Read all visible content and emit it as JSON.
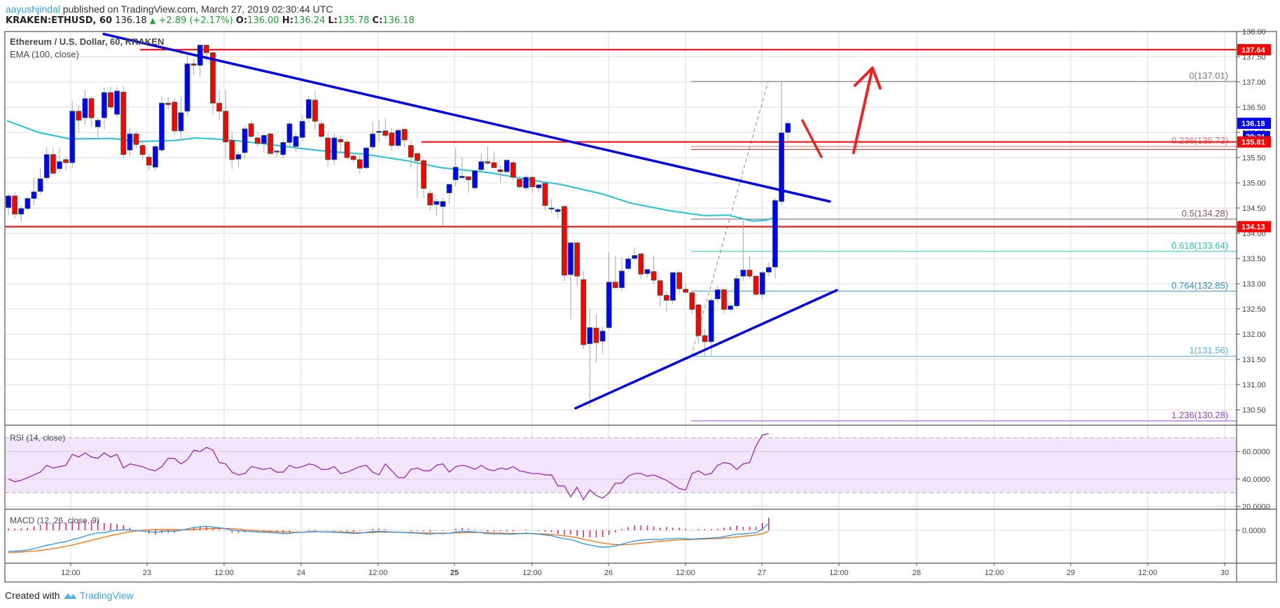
{
  "header": {
    "author": "aayushjindal",
    "published_text": "published on TradingView.com, March 27, 2019 02:30:44 UTC",
    "symbol": "KRAKEN:ETHUSD, 60",
    "last": "136.18",
    "change": "+2.89 (+2.17%)",
    "o_label": "O:",
    "o": "136.00",
    "h_label": "H:",
    "h": "136.24",
    "l_label": "L:",
    "l": "135.78",
    "c_label": "C:",
    "c": "136.18"
  },
  "legend": {
    "title": "Ethereum / U.S. Dollar, 60, KRAKEN",
    "ema": "EMA (100, close)",
    "rsi": "RSI (14, close)",
    "macd": "MACD (12, 26, close, 9)"
  },
  "footer": {
    "created_with": "Created with",
    "brand": "TradingView"
  },
  "colors": {
    "up": "#0000ff",
    "down": "#ff0000",
    "ema": "#21c3d6",
    "trendline": "#0000e6",
    "hline": "#ff0000",
    "rsi_line": "#9c27b0",
    "rsi_band": "#f3e5fc",
    "macd_line": "#2196f3",
    "signal_line": "#ff6d00",
    "histogram": "#e91e63"
  },
  "chart_data": {
    "type": "candlestick",
    "title": "Ethereum / U.S. Dollar, 60, KRAKEN",
    "interval": "60 min",
    "price_axis": {
      "min": 130.28,
      "max": 138.0,
      "ticks": [
        "138.00",
        "137.50",
        "137.00",
        "136.50",
        "136.00",
        "135.50",
        "135.00",
        "134.50",
        "134.00",
        "133.50",
        "133.00",
        "132.50",
        "132.00",
        "131.50",
        "131.00",
        "130.50"
      ]
    },
    "time_axis": {
      "ticks": [
        "12:00",
        "23",
        "12:00",
        "24",
        "12:00",
        "25",
        "12:00",
        "26",
        "12:00",
        "27",
        "12:00",
        "28",
        "12:00",
        "29",
        "12:00",
        "30"
      ]
    },
    "price_labels": [
      {
        "value": "137.64",
        "color": "#ff0000"
      },
      {
        "value": "136.18",
        "color": "#0000ff"
      },
      {
        "value": "29:21",
        "color": "#0000ff"
      },
      {
        "value": "135.81",
        "color": "#ff0000"
      },
      {
        "value": "134.13",
        "color": "#ff0000"
      }
    ],
    "horizontal_lines": [
      137.64,
      135.81,
      134.13
    ],
    "fibonacci": [
      {
        "level": "0",
        "price": 137.01,
        "label": "0(137.01)",
        "color": "#787878"
      },
      {
        "level": "0.236",
        "price": 135.72,
        "label": "0.236(135.72)",
        "color": "#e57373"
      },
      {
        "level": "0.5",
        "price": 134.28,
        "label": "0.5(134.28)",
        "color": "#7d5a6e"
      },
      {
        "level": "0.618",
        "price": 133.64,
        "label": "0.618(133.64)",
        "color": "#26c6a0"
      },
      {
        "level": "0.764",
        "price": 132.85,
        "label": "0.764(132.85)",
        "color": "#2f8fc8"
      },
      {
        "level": "1",
        "price": 131.56,
        "label": "1(131.56)",
        "color": "#5aaee0"
      },
      {
        "level": "1.236",
        "price": 130.28,
        "label": "1.236(130.28)",
        "color": "#a040c8"
      }
    ],
    "trendlines": [
      {
        "name": "bearish-trendline",
        "from": [
          148,
          137.95
        ],
        "to": [
          1185,
          134.63
        ]
      },
      {
        "name": "bullish-trendline",
        "from": [
          822,
          130.53
        ],
        "to": [
          1195,
          132.87
        ]
      }
    ],
    "candles_ohlc": [
      [
        134.51,
        134.8,
        134.35,
        134.74
      ],
      [
        134.74,
        134.82,
        134.3,
        134.38
      ],
      [
        134.38,
        134.55,
        134.22,
        134.49
      ],
      [
        134.49,
        134.72,
        134.45,
        134.69
      ],
      [
        134.69,
        135.1,
        134.55,
        134.82
      ],
      [
        134.83,
        135.3,
        134.78,
        135.08
      ],
      [
        135.1,
        135.7,
        135.05,
        135.56
      ],
      [
        135.56,
        135.7,
        135.15,
        135.19
      ],
      [
        135.28,
        135.7,
        135.2,
        135.42
      ],
      [
        135.46,
        135.52,
        135.25,
        135.4
      ],
      [
        135.4,
        136.62,
        135.3,
        136.42
      ],
      [
        136.42,
        136.55,
        136.0,
        136.24
      ],
      [
        136.29,
        136.85,
        136.15,
        136.67
      ],
      [
        136.67,
        136.72,
        136.1,
        136.29
      ],
      [
        136.11,
        136.3,
        135.85,
        136.24
      ],
      [
        136.29,
        136.88,
        136.05,
        136.79
      ],
      [
        136.79,
        136.9,
        136.45,
        136.5
      ],
      [
        136.36,
        136.9,
        136.3,
        136.82
      ],
      [
        136.8,
        136.92,
        135.5,
        135.56
      ],
      [
        135.65,
        136.08,
        135.52,
        135.97
      ],
      [
        135.97,
        136.02,
        135.7,
        135.76
      ],
      [
        135.74,
        135.8,
        135.45,
        135.56
      ],
      [
        135.51,
        135.58,
        135.25,
        135.35
      ],
      [
        135.31,
        135.75,
        135.25,
        135.72
      ],
      [
        135.65,
        136.72,
        135.6,
        136.58
      ],
      [
        136.58,
        136.7,
        136.45,
        136.55
      ],
      [
        136.6,
        136.68,
        135.95,
        136.03
      ],
      [
        136.03,
        136.72,
        135.85,
        136.39
      ],
      [
        136.42,
        137.55,
        136.32,
        137.36
      ],
      [
        137.36,
        137.45,
        137.14,
        137.33
      ],
      [
        137.33,
        137.76,
        137.1,
        137.73
      ],
      [
        137.73,
        137.74,
        137.4,
        137.58
      ],
      [
        137.58,
        137.62,
        136.35,
        136.58
      ],
      [
        136.58,
        136.85,
        136.25,
        136.42
      ],
      [
        136.42,
        136.85,
        135.5,
        135.81
      ],
      [
        135.84,
        136.0,
        135.28,
        135.46
      ],
      [
        135.47,
        135.62,
        135.3,
        135.56
      ],
      [
        135.6,
        136.12,
        135.48,
        136.07
      ],
      [
        136.17,
        136.23,
        135.88,
        135.92
      ],
      [
        135.89,
        136.0,
        135.72,
        135.78
      ],
      [
        135.78,
        135.97,
        135.6,
        135.94
      ],
      [
        135.97,
        136.0,
        135.58,
        135.58
      ],
      [
        135.62,
        135.65,
        135.52,
        135.63
      ],
      [
        135.56,
        135.85,
        135.48,
        135.8
      ],
      [
        135.8,
        136.22,
        135.72,
        136.17
      ],
      [
        135.72,
        136.0,
        135.62,
        135.92
      ],
      [
        135.9,
        136.35,
        135.82,
        136.22
      ],
      [
        136.28,
        136.72,
        136.2,
        136.65
      ],
      [
        136.64,
        136.82,
        136.05,
        136.22
      ],
      [
        136.17,
        136.25,
        135.88,
        135.92
      ],
      [
        135.89,
        136.0,
        135.33,
        135.46
      ],
      [
        135.46,
        135.98,
        135.35,
        135.89
      ],
      [
        135.86,
        135.94,
        135.62,
        135.81
      ],
      [
        135.81,
        135.86,
        135.47,
        135.5
      ],
      [
        135.53,
        135.6,
        135.4,
        135.46
      ],
      [
        135.46,
        135.55,
        135.18,
        135.29
      ],
      [
        135.3,
        135.72,
        135.25,
        135.69
      ],
      [
        135.71,
        136.2,
        135.65,
        135.97
      ],
      [
        136.0,
        136.25,
        135.8,
        136.02
      ],
      [
        136.03,
        136.28,
        135.88,
        135.94
      ],
      [
        135.99,
        136.08,
        135.64,
        135.74
      ],
      [
        135.74,
        136.08,
        135.68,
        136.04
      ],
      [
        136.06,
        136.1,
        135.7,
        135.85
      ],
      [
        135.74,
        135.85,
        135.28,
        135.51
      ],
      [
        135.58,
        135.62,
        134.69,
        135.44
      ],
      [
        135.44,
        135.48,
        134.71,
        134.89
      ],
      [
        134.79,
        134.86,
        134.45,
        134.56
      ],
      [
        134.57,
        134.68,
        134.35,
        134.63
      ],
      [
        134.53,
        134.7,
        134.15,
        134.63
      ],
      [
        134.8,
        134.98,
        134.58,
        134.97
      ],
      [
        135.06,
        135.68,
        134.92,
        135.31
      ],
      [
        135.1,
        135.52,
        135.08,
        135.13
      ],
      [
        135.12,
        135.15,
        134.8,
        135.06
      ],
      [
        134.9,
        135.26,
        134.85,
        135.24
      ],
      [
        135.26,
        135.58,
        135.22,
        135.42
      ],
      [
        135.42,
        135.72,
        135.35,
        135.39
      ],
      [
        135.4,
        135.62,
        135.3,
        135.3
      ],
      [
        135.26,
        135.35,
        135.0,
        135.22
      ],
      [
        135.22,
        135.45,
        135.2,
        135.45
      ],
      [
        135.4,
        135.44,
        135.05,
        135.11
      ],
      [
        135.07,
        135.12,
        134.88,
        134.92
      ],
      [
        134.9,
        135.15,
        134.85,
        135.11
      ],
      [
        135.11,
        135.14,
        134.8,
        134.92
      ],
      [
        134.9,
        134.98,
        134.82,
        134.96
      ],
      [
        134.99,
        135.0,
        134.45,
        134.55
      ],
      [
        134.48,
        134.68,
        134.4,
        134.5
      ],
      [
        134.43,
        134.5,
        134.3,
        134.47
      ],
      [
        134.53,
        134.57,
        133.05,
        133.17
      ],
      [
        133.18,
        133.81,
        132.3,
        133.81
      ],
      [
        133.81,
        133.82,
        132.95,
        133.15
      ],
      [
        133.08,
        133.25,
        131.7,
        131.79
      ],
      [
        131.81,
        132.5,
        130.55,
        132.13
      ],
      [
        132.12,
        132.4,
        131.45,
        131.83
      ],
      [
        131.86,
        132.15,
        131.6,
        132.06
      ],
      [
        132.13,
        133.62,
        132.1,
        133.03
      ],
      [
        133.03,
        133.55,
        132.9,
        132.92
      ],
      [
        132.92,
        133.52,
        132.85,
        133.25
      ],
      [
        133.3,
        133.55,
        133.25,
        133.49
      ],
      [
        133.5,
        133.72,
        133.45,
        133.56
      ],
      [
        133.59,
        133.62,
        133.1,
        133.19
      ],
      [
        133.2,
        133.3,
        133.12,
        133.28
      ],
      [
        133.24,
        133.55,
        133.0,
        133.07
      ],
      [
        133.06,
        133.1,
        132.55,
        132.77
      ],
      [
        132.77,
        132.85,
        132.45,
        132.67
      ],
      [
        132.67,
        133.23,
        132.6,
        133.22
      ],
      [
        133.22,
        133.25,
        132.8,
        132.9
      ],
      [
        132.89,
        133.0,
        132.8,
        132.83
      ],
      [
        132.82,
        132.85,
        132.4,
        132.49
      ],
      [
        132.58,
        132.6,
        131.8,
        131.97
      ],
      [
        131.97,
        132.1,
        131.56,
        131.85
      ],
      [
        131.85,
        132.72,
        131.58,
        132.67
      ],
      [
        132.7,
        132.95,
        132.62,
        132.88
      ],
      [
        132.88,
        132.92,
        132.4,
        132.49
      ],
      [
        132.49,
        132.62,
        132.45,
        132.56
      ],
      [
        132.56,
        133.18,
        132.52,
        133.1
      ],
      [
        133.15,
        134.25,
        133.05,
        133.27
      ],
      [
        133.27,
        133.55,
        133.1,
        133.15
      ],
      [
        133.15,
        133.18,
        132.75,
        132.79
      ],
      [
        132.79,
        133.25,
        132.7,
        133.22
      ],
      [
        133.23,
        133.42,
        133.15,
        133.32
      ],
      [
        133.33,
        134.7,
        133.1,
        134.65
      ],
      [
        134.63,
        137.01,
        134.55,
        135.99
      ],
      [
        136.0,
        136.24,
        135.78,
        136.18
      ]
    ],
    "ema100": [
      [
        10,
        136.23
      ],
      [
        55,
        136.0
      ],
      [
        100,
        135.87
      ],
      [
        160,
        135.88
      ],
      [
        200,
        135.82
      ],
      [
        250,
        135.84
      ],
      [
        280,
        135.89
      ],
      [
        320,
        135.86
      ],
      [
        380,
        135.77
      ],
      [
        430,
        135.68
      ],
      [
        470,
        135.62
      ],
      [
        520,
        135.57
      ],
      [
        580,
        135.44
      ],
      [
        630,
        135.3
      ],
      [
        700,
        135.2
      ],
      [
        760,
        135.05
      ],
      [
        800,
        134.97
      ],
      [
        860,
        134.78
      ],
      [
        900,
        134.6
      ],
      [
        955,
        134.45
      ],
      [
        1005,
        134.35
      ],
      [
        1040,
        134.36
      ],
      [
        1075,
        134.24
      ],
      [
        1095,
        134.26
      ],
      [
        1107,
        134.32
      ]
    ],
    "rsi": {
      "levels": {
        "upper": 70,
        "lower": 30
      },
      "ticks": [
        "60.0000",
        "40.0000",
        "20.0000"
      ],
      "values": [
        40,
        38,
        39,
        41,
        43,
        45,
        50,
        48,
        49,
        50,
        58,
        56,
        59,
        56,
        55,
        59,
        56,
        58,
        48,
        51,
        50,
        49,
        47,
        46,
        49,
        55,
        55,
        51,
        54,
        61,
        60,
        63,
        61,
        52,
        51,
        45,
        43,
        44,
        49,
        48,
        47,
        48,
        45,
        45,
        50,
        48,
        49,
        51,
        50,
        47,
        47,
        49,
        44,
        45,
        47,
        49,
        50,
        45,
        43,
        51,
        46,
        41,
        41,
        47,
        48,
        46,
        46,
        50,
        51,
        45,
        49,
        50,
        49,
        47,
        50,
        47,
        46,
        48,
        47,
        49,
        46,
        45,
        44,
        44,
        43,
        43,
        35,
        35,
        27,
        34,
        25,
        32,
        28,
        26,
        30,
        37,
        37,
        42,
        44,
        44,
        42,
        43,
        41,
        39,
        36,
        33,
        32,
        44,
        46,
        43,
        44,
        50,
        52,
        51,
        47,
        51,
        52,
        64,
        72,
        73
      ]
    },
    "macd": {
      "zero_tick": "0.0000",
      "macd": [
        -0.95,
        -0.93,
        -0.92,
        -0.88,
        -0.82,
        -0.75,
        -0.67,
        -0.62,
        -0.55,
        -0.51,
        -0.42,
        -0.35,
        -0.26,
        -0.18,
        -0.12,
        -0.11,
        -0.04,
        0.0,
        0.02,
        0.0,
        -0.02,
        -0.03,
        -0.07,
        -0.09,
        -0.05,
        -0.04,
        -0.04,
        0.0,
        0.06,
        0.12,
        0.15,
        0.18,
        0.14,
        0.11,
        0.07,
        0.0,
        -0.02,
        -0.04,
        -0.05,
        -0.08,
        -0.09,
        -0.1,
        -0.12,
        -0.15,
        -0.14,
        -0.1,
        -0.09,
        -0.06,
        -0.05,
        -0.07,
        -0.08,
        -0.09,
        -0.1,
        -0.12,
        -0.14,
        -0.13,
        -0.1,
        -0.06,
        -0.05,
        -0.06,
        -0.08,
        -0.09,
        -0.1,
        -0.12,
        -0.13,
        -0.15,
        -0.17,
        -0.14,
        -0.15,
        -0.13,
        -0.08,
        -0.05,
        -0.06,
        -0.08,
        -0.11,
        -0.15,
        -0.16,
        -0.16,
        -0.17,
        -0.17,
        -0.15,
        -0.13,
        -0.15,
        -0.18,
        -0.21,
        -0.24,
        -0.32,
        -0.38,
        -0.41,
        -0.5,
        -0.6,
        -0.66,
        -0.72,
        -0.76,
        -0.74,
        -0.7,
        -0.62,
        -0.55,
        -0.48,
        -0.44,
        -0.42,
        -0.41,
        -0.42,
        -0.38,
        -0.38,
        -0.36,
        -0.38,
        -0.4,
        -0.37,
        -0.36,
        -0.35,
        -0.33,
        -0.28,
        -0.23,
        -0.17,
        -0.17,
        -0.14,
        -0.11,
        0.06,
        0.3
      ],
      "signal": [
        -1.0,
        -0.98,
        -0.97,
        -0.95,
        -0.93,
        -0.9,
        -0.86,
        -0.82,
        -0.77,
        -0.72,
        -0.66,
        -0.59,
        -0.52,
        -0.45,
        -0.38,
        -0.31,
        -0.24,
        -0.18,
        -0.12,
        -0.07,
        -0.03,
        0.0,
        0.02,
        0.03,
        0.03,
        0.03,
        0.03,
        0.02,
        0.02,
        0.03,
        0.05,
        0.07,
        0.08,
        0.08,
        0.08,
        0.07,
        0.05,
        0.02,
        0.0,
        -0.02,
        -0.04,
        -0.05,
        -0.07,
        -0.08,
        -0.09,
        -0.09,
        -0.09,
        -0.08,
        -0.07,
        -0.07,
        -0.07,
        -0.07,
        -0.08,
        -0.09,
        -0.1,
        -0.11,
        -0.11,
        -0.1,
        -0.09,
        -0.09,
        -0.09,
        -0.09,
        -0.1,
        -0.1,
        -0.11,
        -0.12,
        -0.13,
        -0.13,
        -0.13,
        -0.13,
        -0.12,
        -0.11,
        -0.1,
        -0.1,
        -0.1,
        -0.11,
        -0.12,
        -0.13,
        -0.14,
        -0.14,
        -0.14,
        -0.15,
        -0.15,
        -0.16,
        -0.17,
        -0.19,
        -0.22,
        -0.25,
        -0.29,
        -0.34,
        -0.4,
        -0.46,
        -0.52,
        -0.57,
        -0.61,
        -0.64,
        -0.65,
        -0.64,
        -0.61,
        -0.58,
        -0.55,
        -0.52,
        -0.49,
        -0.47,
        -0.45,
        -0.43,
        -0.42,
        -0.41,
        -0.4,
        -0.39,
        -0.38,
        -0.37,
        -0.35,
        -0.33,
        -0.3,
        -0.27,
        -0.24,
        -0.21,
        -0.15,
        -0.05
      ]
    }
  }
}
